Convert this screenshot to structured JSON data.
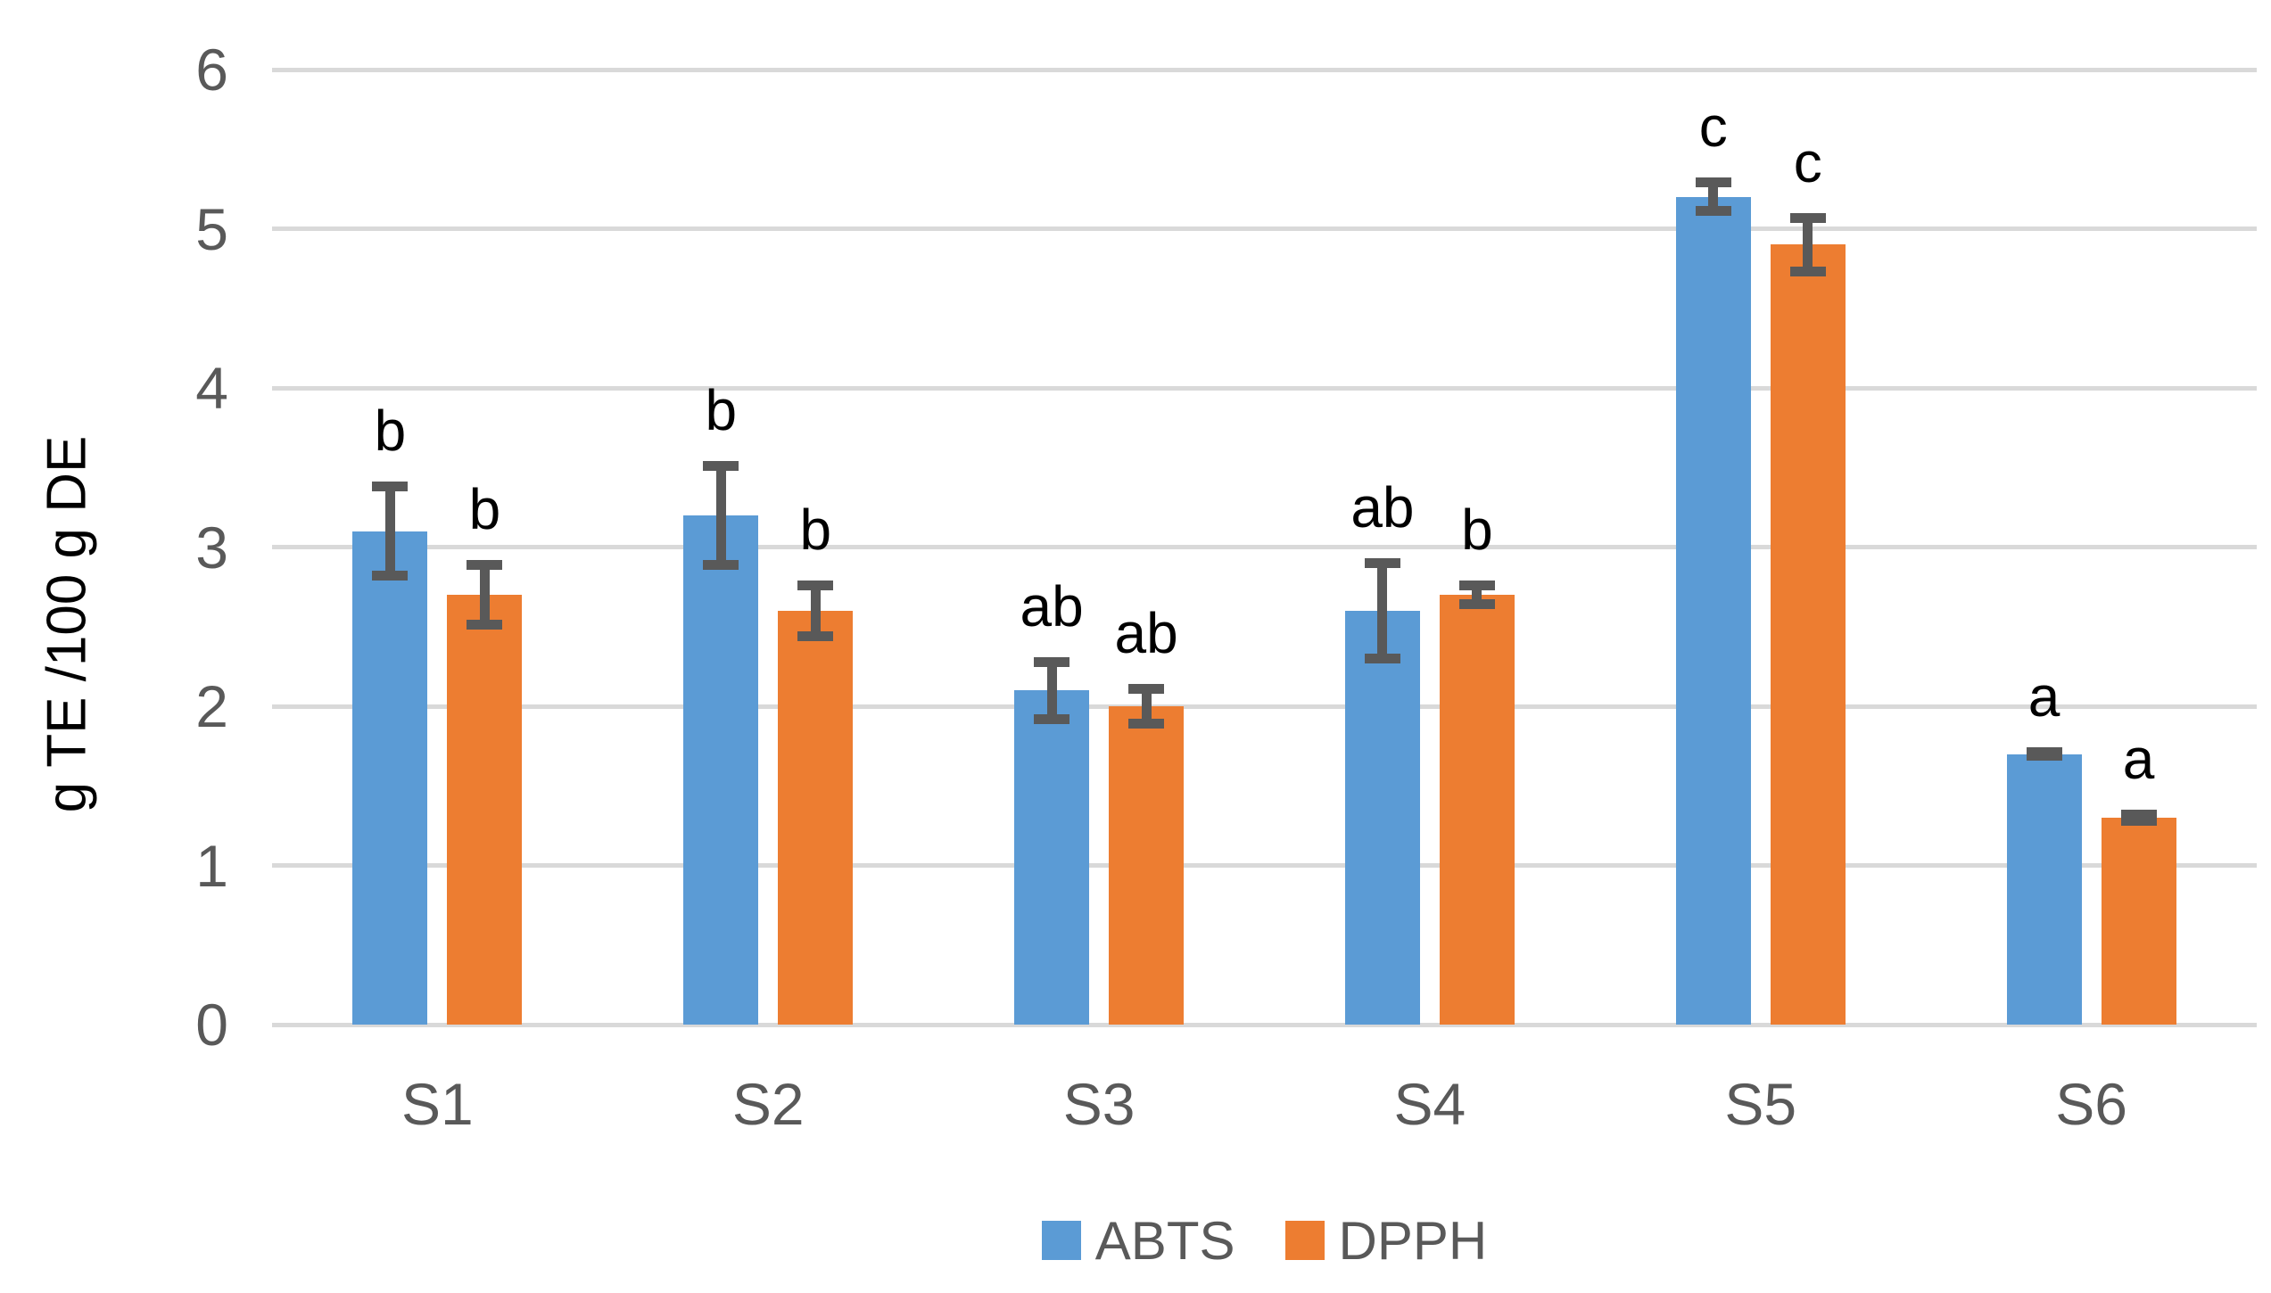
{
  "chart_data": {
    "type": "bar",
    "title": "",
    "xlabel": "",
    "ylabel": "g TE /100 g DE",
    "ylim": [
      0,
      6
    ],
    "yticks": [
      0,
      1,
      2,
      3,
      4,
      5,
      6
    ],
    "grid": true,
    "legend_position": "bottom",
    "categories": [
      "S1",
      "S2",
      "S3",
      "S4",
      "S5",
      "S6"
    ],
    "series": [
      {
        "name": "ABTS",
        "color": "#5B9BD5",
        "values": [
          3.1,
          3.2,
          2.1,
          2.6,
          5.2,
          1.7
        ],
        "errors": [
          0.31,
          0.34,
          0.21,
          0.33,
          0.12,
          0.04
        ],
        "letters": [
          "b",
          "b",
          "ab",
          "ab",
          "c",
          "a"
        ]
      },
      {
        "name": "DPPH",
        "color": "#ED7D31",
        "values": [
          2.7,
          2.6,
          2.0,
          2.7,
          4.9,
          1.3
        ],
        "errors": [
          0.22,
          0.19,
          0.14,
          0.09,
          0.2,
          0.05
        ],
        "letters": [
          "b",
          "b",
          "ab",
          "b",
          "c",
          "a"
        ]
      }
    ],
    "error_bar_color": "#595959",
    "gridline_color": "#D9D9D9",
    "tick_label_color": "#595959"
  }
}
